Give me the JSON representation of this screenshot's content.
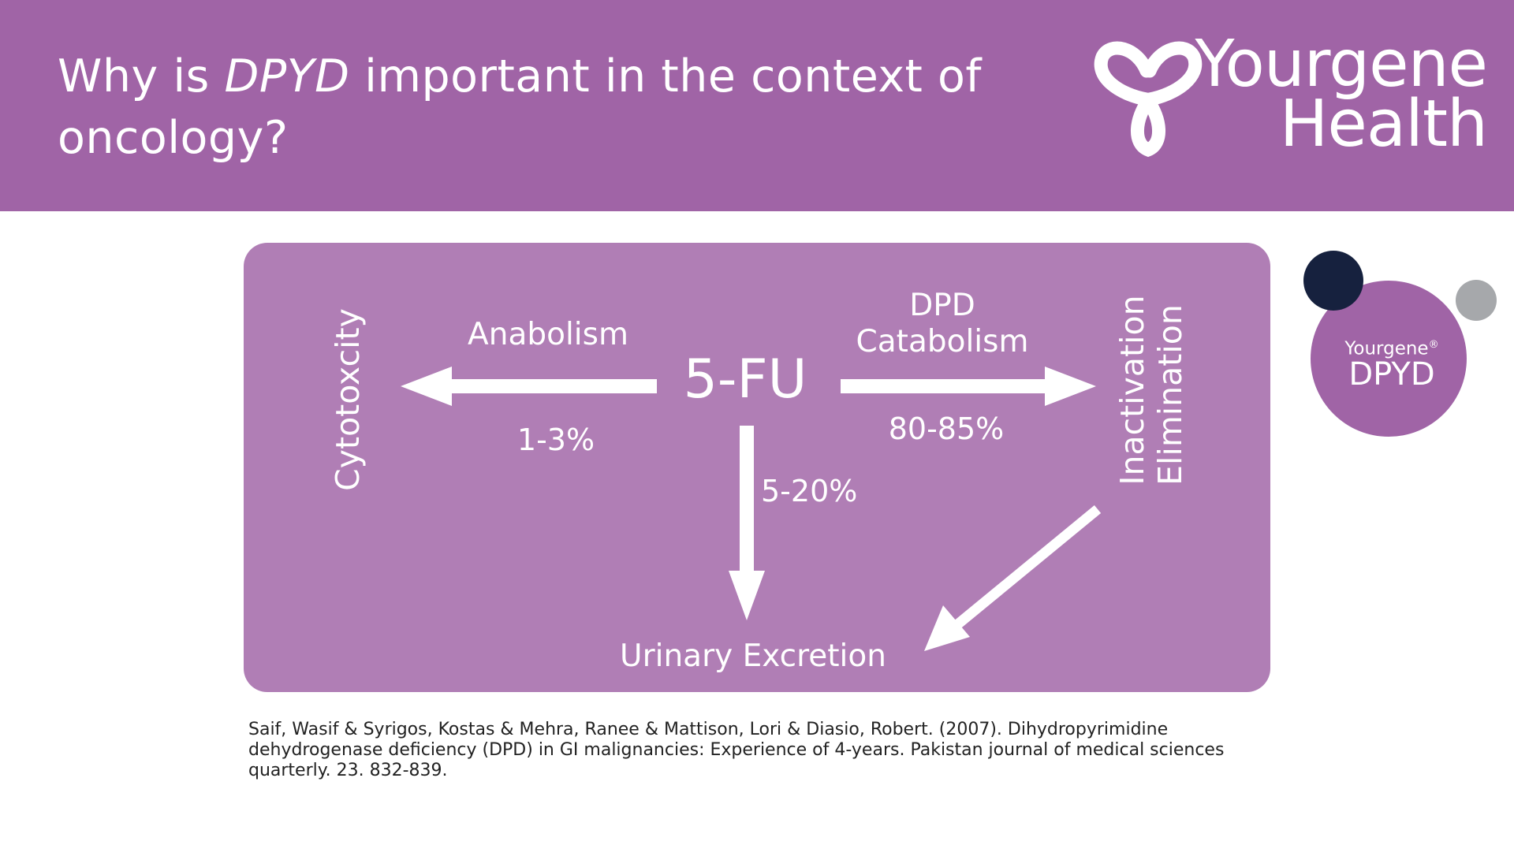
{
  "header": {
    "title_before": "Why is ",
    "title_em": "DPYD",
    "title_after": " important in the context of oncology?",
    "bg_color": "#a064a6"
  },
  "logo": {
    "line1": "Yourgene",
    "line2": "Health",
    "icon": "trefoil-knot-logo-icon"
  },
  "diagram": {
    "center": "5-FU",
    "left_target": "Cytotoxcity",
    "right_target_line1": "Inactivation",
    "right_target_line2": "Elimination",
    "bottom_target": "Urinary Excretion",
    "left_pathway": "Anabolism",
    "left_percent": "1-3%",
    "right_pathway_line1": "DPD",
    "right_pathway_line2": "Catabolism",
    "right_percent": "80-85%",
    "down_percent": "5-20%",
    "panel_color": "#b07eb5"
  },
  "badge": {
    "brand": "Yourgene",
    "reg": "®",
    "product": "DPYD",
    "dark_dot_color": "#16213e",
    "grey_dot_color": "#a6a8ab",
    "circle_color": "#a064a6"
  },
  "reference": {
    "text": "Saif, Wasif & Syrigos, Kostas & Mehra, Ranee & Mattison, Lori & Diasio, Robert. (2007). Dihydropyrimidine dehydrogenase deficiency (DPD) in GI malignancies: Experience of 4-years. Pakistan journal of medical sciences quarterly. 23. 832-839."
  }
}
